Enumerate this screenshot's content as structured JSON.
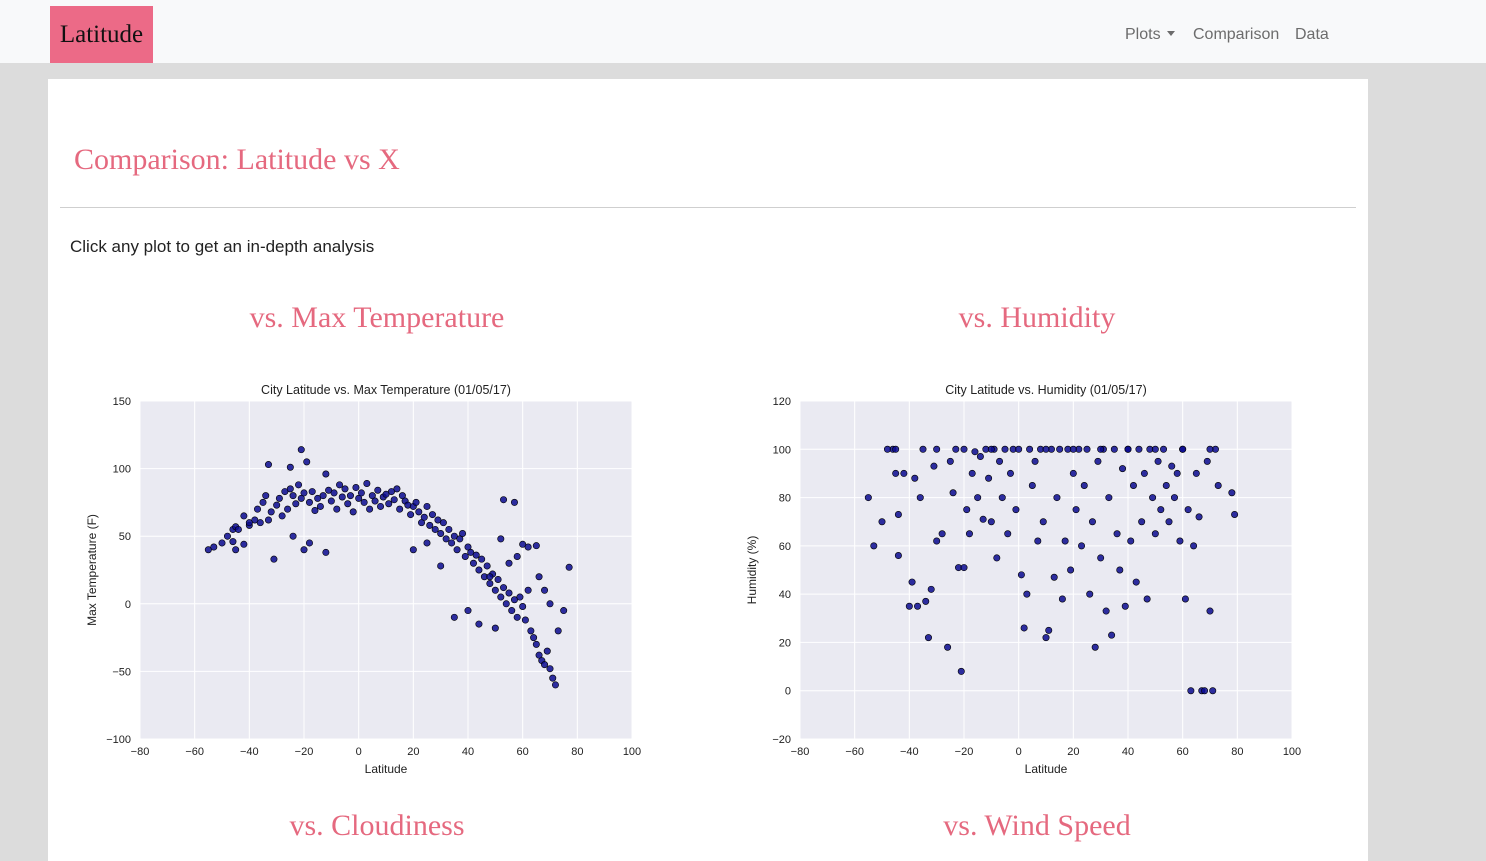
{
  "navbar": {
    "brand": "Latitude",
    "items": [
      {
        "label": "Plots",
        "has_dropdown": true
      },
      {
        "label": "Comparison",
        "has_dropdown": false
      },
      {
        "label": "Data",
        "has_dropdown": false
      }
    ],
    "brand_color": "#ec6a87"
  },
  "page": {
    "title": "Comparison: Latitude vs X",
    "instruction": "Click any plot to get an in-depth analysis",
    "accent_color": "#e5697f"
  },
  "sections": [
    {
      "heading": "vs. Max Temperature"
    },
    {
      "heading": "vs. Humidity"
    },
    {
      "heading": "vs. Cloudiness"
    },
    {
      "heading": "vs. Wind Speed"
    }
  ],
  "chart_data": [
    {
      "type": "scatter",
      "title": "City Latitude vs. Max Temperature (01/05/17)",
      "xlabel": "Latitude",
      "ylabel": "Max Temperature (F)",
      "xlim": [
        -80,
        100
      ],
      "ylim": [
        -100,
        150
      ],
      "xticks": [
        "−80",
        "−60",
        "−40",
        "−20",
        "0",
        "20",
        "40",
        "60",
        "80",
        "100"
      ],
      "yticks": [
        "−100",
        "−50",
        "0",
        "50",
        "100",
        "150"
      ],
      "grid": true,
      "background": "#eaeaf2",
      "marker_color": "#0b0b8f",
      "points": [
        [
          -55,
          40
        ],
        [
          -53,
          42
        ],
        [
          -50,
          45
        ],
        [
          -46,
          55
        ],
        [
          -45,
          57
        ],
        [
          -46,
          46
        ],
        [
          -45,
          40
        ],
        [
          -42,
          44
        ],
        [
          -42,
          65
        ],
        [
          -40,
          58
        ],
        [
          -38,
          62
        ],
        [
          -37,
          70
        ],
        [
          -36,
          60
        ],
        [
          -35,
          75
        ],
        [
          -34,
          80
        ],
        [
          -33,
          62
        ],
        [
          -32,
          68
        ],
        [
          -33,
          103
        ],
        [
          -31,
          33
        ],
        [
          -30,
          73
        ],
        [
          -29,
          78
        ],
        [
          -28,
          65
        ],
        [
          -27,
          83
        ],
        [
          -26,
          70
        ],
        [
          -25,
          85
        ],
        [
          -24,
          80
        ],
        [
          -23,
          74
        ],
        [
          -22,
          88
        ],
        [
          -21,
          78
        ],
        [
          -20,
          82
        ],
        [
          -25,
          101
        ],
        [
          -21,
          114
        ],
        [
          -19,
          105
        ],
        [
          -18,
          75
        ],
        [
          -17,
          83
        ],
        [
          -16,
          69
        ],
        [
          -15,
          78
        ],
        [
          -14,
          72
        ],
        [
          -13,
          80
        ],
        [
          -12,
          96
        ],
        [
          -11,
          84
        ],
        [
          -10,
          76
        ],
        [
          -9,
          82
        ],
        [
          -8,
          70
        ],
        [
          -7,
          88
        ],
        [
          -6,
          79
        ],
        [
          -5,
          85
        ],
        [
          -4,
          74
        ],
        [
          -3,
          80
        ],
        [
          -2,
          68
        ],
        [
          -1,
          86
        ],
        [
          0,
          78
        ],
        [
          1,
          82
        ],
        [
          2,
          75
        ],
        [
          3,
          89
        ],
        [
          4,
          70
        ],
        [
          5,
          80
        ],
        [
          6,
          76
        ],
        [
          7,
          84
        ],
        [
          8,
          72
        ],
        [
          9,
          79
        ],
        [
          10,
          81
        ],
        [
          11,
          74
        ],
        [
          12,
          83
        ],
        [
          13,
          77
        ],
        [
          14,
          85
        ],
        [
          15,
          70
        ],
        [
          16,
          80
        ],
        [
          17,
          76
        ],
        [
          18,
          73
        ],
        [
          19,
          66
        ],
        [
          20,
          72
        ],
        [
          21,
          75
        ],
        [
          22,
          68
        ],
        [
          23,
          60
        ],
        [
          24,
          64
        ],
        [
          25,
          72
        ],
        [
          26,
          58
        ],
        [
          27,
          66
        ],
        [
          28,
          55
        ],
        [
          29,
          62
        ],
        [
          30,
          52
        ],
        [
          31,
          60
        ],
        [
          32,
          48
        ],
        [
          33,
          55
        ],
        [
          34,
          45
        ],
        [
          35,
          50
        ],
        [
          36,
          40
        ],
        [
          37,
          48
        ],
        [
          38,
          52
        ],
        [
          39,
          35
        ],
        [
          40,
          42
        ],
        [
          41,
          38
        ],
        [
          42,
          30
        ],
        [
          43,
          36
        ],
        [
          44,
          25
        ],
        [
          45,
          33
        ],
        [
          46,
          20
        ],
        [
          47,
          28
        ],
        [
          48,
          15
        ],
        [
          49,
          22
        ],
        [
          50,
          10
        ],
        [
          51,
          18
        ],
        [
          52,
          5
        ],
        [
          53,
          12
        ],
        [
          54,
          0
        ],
        [
          55,
          8
        ],
        [
          56,
          -5
        ],
        [
          57,
          3
        ],
        [
          58,
          -10
        ],
        [
          59,
          5
        ],
        [
          60,
          -2
        ],
        [
          61,
          -12
        ],
        [
          62,
          10
        ],
        [
          63,
          -20
        ],
        [
          64,
          -25
        ],
        [
          65,
          -30
        ],
        [
          66,
          -38
        ],
        [
          67,
          -42
        ],
        [
          68,
          -45
        ],
        [
          69,
          -35
        ],
        [
          70,
          -48
        ],
        [
          71,
          -55
        ],
        [
          72,
          -60
        ],
        [
          73,
          -20
        ],
        [
          75,
          -5
        ],
        [
          77,
          27
        ],
        [
          60,
          44
        ],
        [
          62,
          42
        ],
        [
          65,
          43
        ],
        [
          53,
          77
        ],
        [
          57,
          75
        ],
        [
          48,
          20
        ],
        [
          44,
          -15
        ],
        [
          40,
          -5
        ],
        [
          35,
          -10
        ],
        [
          30,
          28
        ],
        [
          25,
          45
        ],
        [
          20,
          40
        ],
        [
          -20,
          40
        ],
        [
          -24,
          50
        ],
        [
          -18,
          45
        ],
        [
          -12,
          38
        ],
        [
          -40,
          60
        ],
        [
          -44,
          55
        ],
        [
          -48,
          50
        ],
        [
          55,
          30
        ],
        [
          58,
          35
        ],
        [
          52,
          48
        ],
        [
          50,
          -18
        ],
        [
          66,
          20
        ],
        [
          68,
          10
        ],
        [
          70,
          0
        ]
      ]
    },
    {
      "type": "scatter",
      "title": "City Latitude vs. Humidity (01/05/17)",
      "xlabel": "Latitude",
      "ylabel": "Humidity (%)",
      "xlim": [
        -80,
        100
      ],
      "ylim": [
        -20,
        120
      ],
      "xticks": [
        "−80",
        "−60",
        "−40",
        "−20",
        "0",
        "20",
        "40",
        "60",
        "80",
        "100"
      ],
      "yticks": [
        "−20",
        "0",
        "20",
        "40",
        "60",
        "80",
        "100",
        "120"
      ],
      "grid": true,
      "background": "#eaeaf2",
      "marker_color": "#0b0b8f",
      "points": [
        [
          -55,
          80
        ],
        [
          -53,
          60
        ],
        [
          -50,
          70
        ],
        [
          -46,
          100
        ],
        [
          -45,
          100
        ],
        [
          -45,
          90
        ],
        [
          -44,
          73
        ],
        [
          -44,
          56
        ],
        [
          -42,
          90
        ],
        [
          -40,
          35
        ],
        [
          -39,
          45
        ],
        [
          -38,
          88
        ],
        [
          -37,
          35
        ],
        [
          -36,
          80
        ],
        [
          -35,
          100
        ],
        [
          -34,
          37
        ],
        [
          -33,
          22
        ],
        [
          -32,
          42
        ],
        [
          -31,
          93
        ],
        [
          -30,
          62
        ],
        [
          -28,
          65
        ],
        [
          -26,
          18
        ],
        [
          -25,
          95
        ],
        [
          -24,
          82
        ],
        [
          -23,
          100
        ],
        [
          -22,
          51
        ],
        [
          -21,
          8
        ],
        [
          -20,
          51
        ],
        [
          -19,
          75
        ],
        [
          -18,
          65
        ],
        [
          -17,
          90
        ],
        [
          -16,
          99
        ],
        [
          -15,
          80
        ],
        [
          -14,
          97
        ],
        [
          -13,
          71
        ],
        [
          -12,
          100
        ],
        [
          -11,
          88
        ],
        [
          -10,
          70
        ],
        [
          -9,
          100
        ],
        [
          -8,
          55
        ],
        [
          -7,
          95
        ],
        [
          -6,
          80
        ],
        [
          -5,
          100
        ],
        [
          -4,
          65
        ],
        [
          -3,
          90
        ],
        [
          -2,
          100
        ],
        [
          -1,
          75
        ],
        [
          0,
          100
        ],
        [
          1,
          48
        ],
        [
          2,
          26
        ],
        [
          3,
          40
        ],
        [
          4,
          100
        ],
        [
          5,
          85
        ],
        [
          6,
          95
        ],
        [
          7,
          62
        ],
        [
          8,
          100
        ],
        [
          9,
          70
        ],
        [
          10,
          22
        ],
        [
          11,
          25
        ],
        [
          12,
          100
        ],
        [
          13,
          47
        ],
        [
          14,
          80
        ],
        [
          15,
          100
        ],
        [
          16,
          38
        ],
        [
          17,
          62
        ],
        [
          18,
          100
        ],
        [
          19,
          50
        ],
        [
          20,
          90
        ],
        [
          21,
          75
        ],
        [
          22,
          100
        ],
        [
          23,
          60
        ],
        [
          24,
          85
        ],
        [
          25,
          100
        ],
        [
          26,
          40
        ],
        [
          27,
          70
        ],
        [
          28,
          18
        ],
        [
          29,
          95
        ],
        [
          30,
          55
        ],
        [
          31,
          100
        ],
        [
          32,
          33
        ],
        [
          33,
          80
        ],
        [
          34,
          23
        ],
        [
          35,
          100
        ],
        [
          36,
          65
        ],
        [
          37,
          50
        ],
        [
          38,
          92
        ],
        [
          39,
          35
        ],
        [
          40,
          100
        ],
        [
          41,
          62
        ],
        [
          42,
          85
        ],
        [
          43,
          45
        ],
        [
          44,
          100
        ],
        [
          45,
          70
        ],
        [
          46,
          90
        ],
        [
          47,
          38
        ],
        [
          48,
          100
        ],
        [
          49,
          80
        ],
        [
          50,
          65
        ],
        [
          51,
          95
        ],
        [
          52,
          75
        ],
        [
          53,
          100
        ],
        [
          54,
          85
        ],
        [
          55,
          70
        ],
        [
          56,
          93
        ],
        [
          57,
          80
        ],
        [
          58,
          90
        ],
        [
          59,
          62
        ],
        [
          60,
          100
        ],
        [
          61,
          38
        ],
        [
          62,
          75
        ],
        [
          63,
          0
        ],
        [
          64,
          60
        ],
        [
          65,
          90
        ],
        [
          66,
          72
        ],
        [
          67,
          0
        ],
        [
          68,
          0
        ],
        [
          69,
          95
        ],
        [
          70,
          33
        ],
        [
          71,
          0
        ],
        [
          72,
          100
        ],
        [
          73,
          85
        ],
        [
          78,
          82
        ],
        [
          79,
          73
        ],
        [
          -48,
          100
        ],
        [
          -30,
          100
        ],
        [
          -10,
          100
        ],
        [
          10,
          100
        ],
        [
          30,
          100
        ],
        [
          50,
          100
        ],
        [
          70,
          100
        ],
        [
          -20,
          100
        ],
        [
          20,
          100
        ],
        [
          40,
          100
        ],
        [
          60,
          100
        ]
      ]
    }
  ]
}
